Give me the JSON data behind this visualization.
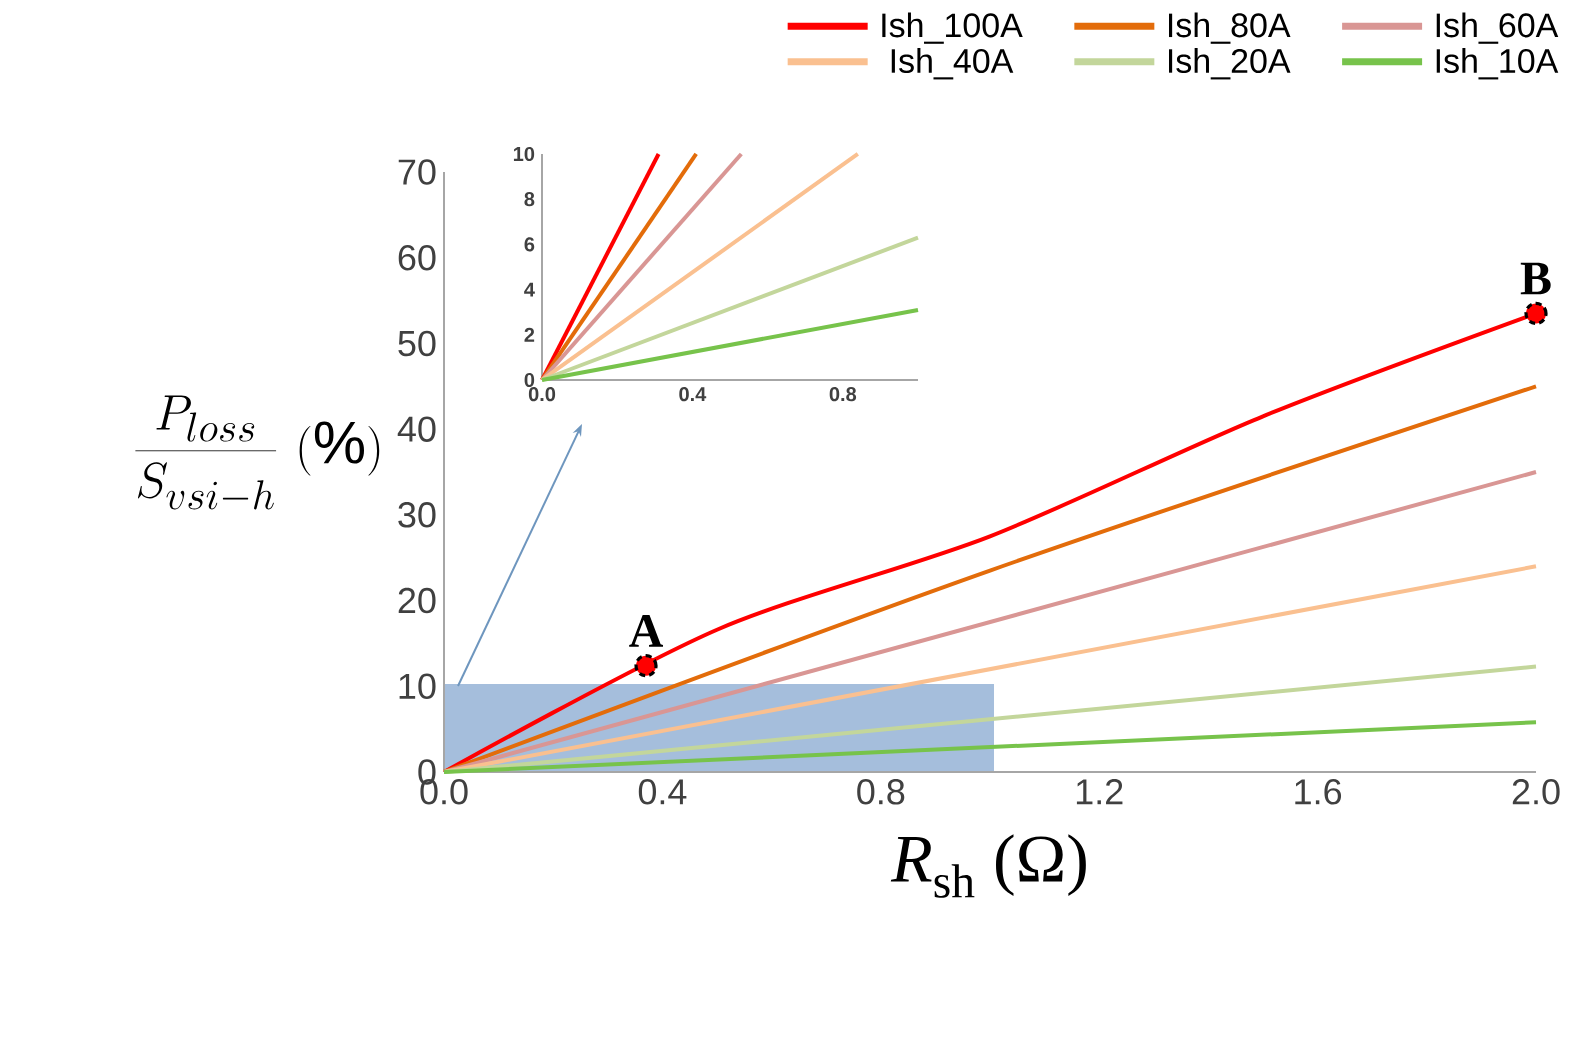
{
  "chart_data": [
    {
      "type": "line",
      "xlabel": "*R*$_{sh}$ (Ω)",
      "ylabel": "\\frac{P_{loss}}{S_{vsi-h}}\\ (\\%)",
      "xlim": [
        0,
        2.0
      ],
      "ylim": [
        0,
        70
      ],
      "xticks": [
        {
          "value": 0,
          "label": "0.0"
        },
        {
          "value": 0.4,
          "label": "0.4"
        },
        {
          "value": 0.8,
          "label": "0.8"
        },
        {
          "value": 1.2,
          "label": "1.2"
        },
        {
          "value": 1.6,
          "label": "1.6"
        },
        {
          "value": 2.0,
          "label": "2.0"
        }
      ],
      "yticks": [
        0,
        10,
        20,
        30,
        40,
        50,
        60,
        70
      ],
      "legend": "top",
      "grid": false,
      "series": [
        {
          "name": "Ish_100A",
          "color": "#ff0000",
          "x": [
            0,
            0.5,
            1.0,
            1.5,
            2.0
          ],
          "values": [
            0,
            16.6,
            27.5,
            41.5,
            53.5
          ]
        },
        {
          "name": "Ish_80A",
          "color": "#e36c0a",
          "x": [
            0,
            1.0,
            2.0
          ],
          "values": [
            0,
            23.5,
            45.0
          ]
        },
        {
          "name": "Ish_60A",
          "color": "#d99694",
          "x": [
            0,
            2.0
          ],
          "values": [
            0,
            35.0
          ]
        },
        {
          "name": "Ish_40A",
          "color": "#fac090",
          "x": [
            0,
            2.0
          ],
          "values": [
            0,
            24.0
          ]
        },
        {
          "name": "Ish_20A",
          "color": "#c3d69b",
          "x": [
            0,
            2.0
          ],
          "values": [
            0,
            12.3
          ]
        },
        {
          "name": "Ish_10A",
          "color": "#77c34b",
          "x": [
            0,
            2.0
          ],
          "values": [
            0,
            5.8
          ]
        },
        {
          "type": "scatter",
          "marker": "circle",
          "color": "#ff0000",
          "x": [
            0.37,
            2.0
          ],
          "values": [
            12.4,
            53.5
          ]
        }
      ],
      "annotations": [
        {
          "text": "A",
          "x": 0.37,
          "y": 12.4
        },
        {
          "text": "B",
          "x": 2.0,
          "y": 53.5
        }
      ]
    },
    {
      "type": "line",
      "xlim": [
        0,
        1.0
      ],
      "ylim": [
        0,
        10
      ],
      "xticks": [
        {
          "value": 0,
          "label": "0.0"
        },
        {
          "value": 0.4,
          "label": "0.4"
        },
        {
          "value": 0.8,
          "label": "0.8"
        }
      ],
      "yticks": [
        0,
        2,
        4,
        6,
        8,
        10
      ],
      "series": [
        {
          "color": "#ff0000",
          "x": [
            0,
            0.31
          ],
          "values": [
            0,
            10
          ]
        },
        {
          "color": "#e36c0a",
          "x": [
            0,
            0.41
          ],
          "values": [
            0,
            10
          ]
        },
        {
          "color": "#d99694",
          "x": [
            0,
            0.53
          ],
          "values": [
            0,
            10
          ]
        },
        {
          "color": "#fac090",
          "x": [
            0,
            0.84
          ],
          "values": [
            0,
            10
          ]
        },
        {
          "color": "#c3d69b",
          "x": [
            0,
            1.0
          ],
          "values": [
            0,
            6.3
          ]
        },
        {
          "color": "#77c34b",
          "x": [
            0,
            1.0
          ],
          "values": [
            0,
            3.1
          ]
        }
      ]
    }
  ]
}
